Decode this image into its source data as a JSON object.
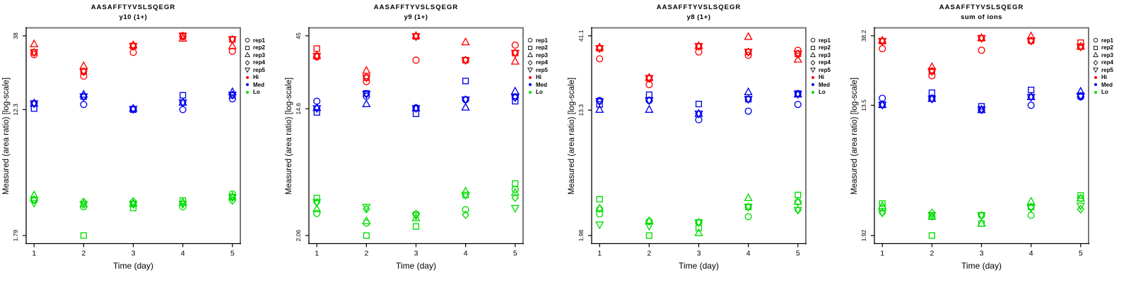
{
  "figure": {
    "xlabel": "Time (day)",
    "ylabel": "Measured (area ratio) [log-scale]",
    "colors": {
      "hi": "#FF0000",
      "med": "#0000EE",
      "lo": "#00DD00",
      "box_gray": "#787878",
      "axis_black": "#000000"
    }
  },
  "legend": {
    "rep_items": [
      {
        "label": "rep1",
        "marker": "circle"
      },
      {
        "label": "rep2",
        "marker": "square"
      },
      {
        "label": "rep3",
        "marker": "triangle-up"
      },
      {
        "label": "rep4",
        "marker": "diamond"
      },
      {
        "label": "rep5",
        "marker": "triangle-down"
      }
    ],
    "level_items": [
      {
        "label": "Hi",
        "color": "#FF0000"
      },
      {
        "label": "Med",
        "color": "#0000EE"
      },
      {
        "label": "Lo",
        "color": "#00DD00"
      }
    ]
  },
  "chart_data": [
    {
      "type": "scatter",
      "title": "AASAFFTYVSLSQEGR",
      "subtitle": "y10 (1+)",
      "xlabel": "Time (day)",
      "ylabel": "Measured (area ratio) [log-scale]",
      "y_scale": "log",
      "x": [
        1,
        2,
        3,
        4,
        5
      ],
      "x_tick_labels": [
        "1",
        "2",
        "3",
        "4",
        "5"
      ],
      "y_ticks": [
        38,
        12.3,
        1.79
      ],
      "y_tick_labels": [
        "38",
        "12.3",
        "1.79"
      ],
      "series": [
        {
          "name": "Hi",
          "color": "#FF0000",
          "reps": [
            {
              "rep": "rep1",
              "marker": "circle",
              "values": [
                28.5,
                20.5,
                29.5,
                37.5,
                30.0
              ]
            },
            {
              "rep": "rep2",
              "marker": "square",
              "values": [
                29.5,
                22.0,
                32.5,
                38.0,
                36.0
              ]
            },
            {
              "rep": "rep3",
              "marker": "triangle-up",
              "values": [
                33.5,
                24.0,
                33.0,
                36.5,
                32.5
              ]
            },
            {
              "rep": "rep4",
              "marker": "diamond",
              "values": [
                29.5,
                22.0,
                32.5,
                38.0,
                36.0
              ]
            },
            {
              "rep": "rep5",
              "marker": "triangle-down",
              "values": [
                29.5,
                22.0,
                32.5,
                38.0,
                36.0
              ]
            }
          ]
        },
        {
          "name": "Med",
          "color": "#0000EE",
          "reps": [
            {
              "rep": "rep1",
              "marker": "circle",
              "values": [
                13.5,
                13.3,
                12.4,
                12.3,
                14.5
              ]
            },
            {
              "rep": "rep2",
              "marker": "square",
              "values": [
                12.5,
                15.0,
                12.3,
                15.3,
                15.3
              ]
            },
            {
              "rep": "rep3",
              "marker": "triangle-up",
              "values": [
                13.5,
                15.5,
                12.5,
                13.7,
                16.1
              ]
            },
            {
              "rep": "rep4",
              "marker": "diamond",
              "values": [
                13.6,
                15.0,
                12.4,
                13.7,
                15.4
              ]
            },
            {
              "rep": "rep5",
              "marker": "triangle-down",
              "values": [
                13.5,
                15.0,
                12.4,
                13.7,
                15.4
              ]
            }
          ]
        },
        {
          "name": "Lo",
          "color": "#00DD00",
          "reps": [
            {
              "rep": "rep1",
              "marker": "circle",
              "values": [
                3.08,
                2.78,
                2.9,
                2.78,
                3.38
              ]
            },
            {
              "rep": "rep2",
              "marker": "square",
              "values": [
                3.1,
                1.79,
                2.73,
                3.06,
                3.22
              ]
            },
            {
              "rep": "rep3",
              "marker": "triangle-up",
              "values": [
                3.32,
                2.9,
                2.92,
                2.97,
                3.26
              ]
            },
            {
              "rep": "rep4",
              "marker": "diamond",
              "values": [
                3.1,
                3.0,
                3.02,
                2.95,
                3.06
              ]
            },
            {
              "rep": "rep5",
              "marker": "triangle-down",
              "values": [
                2.95,
                2.88,
                2.9,
                2.9,
                3.2
              ]
            }
          ]
        }
      ]
    },
    {
      "type": "scatter",
      "title": "AASAFFTYVSLSQEGR",
      "subtitle": "y9 (1+)",
      "xlabel": "Time (day)",
      "ylabel": "Measured (area ratio) [log-scale]",
      "y_scale": "log",
      "x": [
        1,
        2,
        3,
        4,
        5
      ],
      "x_tick_labels": [
        "1",
        "2",
        "3",
        "4",
        "5"
      ],
      "y_ticks": [
        45,
        14.6,
        2.06
      ],
      "y_tick_labels": [
        "45",
        "14.6",
        "2.06"
      ],
      "series": [
        {
          "name": "Hi",
          "color": "#FF0000",
          "reps": [
            {
              "rep": "rep1",
              "marker": "circle",
              "values": [
                32.5,
                22.2,
                30.9,
                30.9,
                39.0
              ]
            },
            {
              "rep": "rep2",
              "marker": "square",
              "values": [
                37.0,
                23.6,
                44.6,
                30.9,
                34.5
              ]
            },
            {
              "rep": "rep3",
              "marker": "triangle-up",
              "values": [
                33.0,
                26.3,
                45.0,
                40.8,
                30.3
              ]
            },
            {
              "rep": "rep4",
              "marker": "diamond",
              "values": [
                33.0,
                23.6,
                44.6,
                30.9,
                34.5
              ]
            },
            {
              "rep": "rep5",
              "marker": "triangle-down",
              "values": [
                33.0,
                23.6,
                44.6,
                30.9,
                34.5
              ]
            }
          ]
        },
        {
          "name": "Med",
          "color": "#0000EE",
          "reps": [
            {
              "rep": "rep1",
              "marker": "circle",
              "values": [
                16.4,
                17.7,
                14.8,
                16.8,
                17.5
              ]
            },
            {
              "rep": "rep2",
              "marker": "square",
              "values": [
                13.8,
                18.5,
                13.5,
                22.4,
                16.4
              ]
            },
            {
              "rep": "rep3",
              "marker": "triangle-up",
              "values": [
                14.8,
                15.7,
                14.7,
                14.9,
                19.1
              ]
            },
            {
              "rep": "rep4",
              "marker": "diamond",
              "values": [
                14.7,
                18.3,
                14.7,
                16.8,
                17.4
              ]
            },
            {
              "rep": "rep5",
              "marker": "triangle-down",
              "values": [
                14.7,
                18.3,
                14.7,
                16.8,
                17.4
              ]
            }
          ]
        },
        {
          "name": "Lo",
          "color": "#00DD00",
          "reps": [
            {
              "rep": "rep1",
              "marker": "circle",
              "values": [
                2.9,
                2.5,
                2.87,
                3.07,
                4.2
              ]
            },
            {
              "rep": "rep2",
              "marker": "square",
              "values": [
                3.67,
                2.06,
                2.37,
                3.85,
                4.6
              ]
            },
            {
              "rep": "rep3",
              "marker": "triangle-up",
              "values": [
                3.1,
                2.58,
                2.7,
                4.08,
                4.0
              ]
            },
            {
              "rep": "rep4",
              "marker": "diamond",
              "values": [
                3.44,
                3.1,
                2.87,
                2.84,
                3.7
              ]
            },
            {
              "rep": "rep5",
              "marker": "triangle-down",
              "values": [
                3.44,
                3.2,
                2.8,
                3.85,
                3.15
              ]
            }
          ]
        }
      ]
    },
    {
      "type": "scatter",
      "title": "AASAFFTYVSLSQEGR",
      "subtitle": "y8 (1+)",
      "xlabel": "Time (day)",
      "ylabel": "Measured (area ratio) [log-scale]",
      "y_scale": "log",
      "x": [
        1,
        2,
        3,
        4,
        5
      ],
      "x_tick_labels": [
        "1",
        "2",
        "3",
        "4",
        "5"
      ],
      "y_ticks": [
        41.1,
        13.3,
        1.98
      ],
      "y_tick_labels": [
        "41.1",
        "13.3",
        "1.98"
      ],
      "series": [
        {
          "name": "Hi",
          "color": "#FF0000",
          "reps": [
            {
              "rep": "rep1",
              "marker": "circle",
              "values": [
                29.0,
                19.6,
                32.2,
                30.6,
                33.0
              ]
            },
            {
              "rep": "rep2",
              "marker": "square",
              "values": [
                34.0,
                21.6,
                35.1,
                32.2,
                31.3
              ]
            },
            {
              "rep": "rep3",
              "marker": "triangle-up",
              "values": [
                34.5,
                21.8,
                35.3,
                40.5,
                28.7
              ]
            },
            {
              "rep": "rep4",
              "marker": "diamond",
              "values": [
                34.0,
                21.6,
                35.1,
                32.2,
                31.3
              ]
            },
            {
              "rep": "rep5",
              "marker": "triangle-down",
              "values": [
                34.0,
                21.6,
                35.1,
                32.2,
                31.3
              ]
            }
          ]
        },
        {
          "name": "Med",
          "color": "#0000EE",
          "reps": [
            {
              "rep": "rep1",
              "marker": "circle",
              "values": [
                15.4,
                15.4,
                11.5,
                13.1,
                14.5
              ]
            },
            {
              "rep": "rep2",
              "marker": "square",
              "values": [
                14.5,
                16.8,
                14.6,
                15.7,
                17.1
              ]
            },
            {
              "rep": "rep3",
              "marker": "triangle-up",
              "values": [
                13.4,
                13.4,
                12.6,
                17.5,
                16.9
              ]
            },
            {
              "rep": "rep4",
              "marker": "diamond",
              "values": [
                15.2,
                15.4,
                12.6,
                15.7,
                17.0
              ]
            },
            {
              "rep": "rep5",
              "marker": "triangle-down",
              "values": [
                15.2,
                15.4,
                12.6,
                15.7,
                17.0
              ]
            }
          ]
        },
        {
          "name": "Lo",
          "color": "#00DD00",
          "reps": [
            {
              "rep": "rep1",
              "marker": "circle",
              "values": [
                2.75,
                2.45,
                2.42,
                2.64,
                3.3
              ]
            },
            {
              "rep": "rep2",
              "marker": "square",
              "values": [
                3.44,
                1.98,
                2.22,
                3.06,
                3.67
              ]
            },
            {
              "rep": "rep3",
              "marker": "triangle-up",
              "values": [
                2.99,
                2.47,
                2.06,
                3.51,
                3.32
              ]
            },
            {
              "rep": "rep4",
              "marker": "diamond",
              "values": [
                2.99,
                2.47,
                2.42,
                3.06,
                2.92
              ]
            },
            {
              "rep": "rep5",
              "marker": "triangle-down",
              "values": [
                2.34,
                2.29,
                2.42,
                3.06,
                2.92
              ]
            }
          ]
        }
      ]
    },
    {
      "type": "scatter",
      "title": "AASAFFTYVSLSQEGR",
      "subtitle": "sum of ions",
      "xlabel": "Time (day)",
      "ylabel": "Measured (area ratio) [log-scale]",
      "y_scale": "log",
      "x": [
        1,
        2,
        3,
        4,
        5
      ],
      "x_tick_labels": [
        "1",
        "2",
        "3",
        "4",
        "5"
      ],
      "y_ticks": [
        38.2,
        13.5,
        1.92
      ],
      "y_tick_labels": [
        "38.2",
        "13.5",
        "1.92"
      ],
      "series": [
        {
          "name": "Hi",
          "color": "#FF0000",
          "reps": [
            {
              "rep": "rep1",
              "marker": "circle",
              "values": [
                31.5,
                21.0,
                30.8,
                35.5,
                32.5
              ]
            },
            {
              "rep": "rep2",
              "marker": "square",
              "values": [
                35.3,
                22.5,
                36.9,
                35.5,
                34.5
              ]
            },
            {
              "rep": "rep3",
              "marker": "triangle-up",
              "values": [
                35.6,
                24.0,
                37.0,
                38.0,
                32.5
              ]
            },
            {
              "rep": "rep4",
              "marker": "diamond",
              "values": [
                35.3,
                22.5,
                36.9,
                35.5,
                32.5
              ]
            },
            {
              "rep": "rep5",
              "marker": "triangle-down",
              "values": [
                35.3,
                22.5,
                36.9,
                35.5,
                32.5
              ]
            }
          ]
        },
        {
          "name": "Med",
          "color": "#0000EE",
          "reps": [
            {
              "rep": "rep1",
              "marker": "circle",
              "values": [
                15.0,
                14.9,
                12.6,
                13.5,
                15.3
              ]
            },
            {
              "rep": "rep2",
              "marker": "square",
              "values": [
                13.6,
                16.3,
                13.3,
                17.0,
                15.6
              ]
            },
            {
              "rep": "rep3",
              "marker": "triangle-up",
              "values": [
                13.6,
                14.9,
                12.6,
                15.3,
                16.6
              ]
            },
            {
              "rep": "rep4",
              "marker": "diamond",
              "values": [
                13.6,
                14.9,
                12.7,
                15.3,
                15.5
              ]
            },
            {
              "rep": "rep5",
              "marker": "triangle-down",
              "values": [
                13.6,
                14.9,
                12.7,
                15.3,
                15.5
              ]
            }
          ]
        },
        {
          "name": "Lo",
          "color": "#00DD00",
          "reps": [
            {
              "rep": "rep1",
              "marker": "circle",
              "values": [
                2.9,
                2.55,
                2.6,
                2.6,
                3.35
              ]
            },
            {
              "rep": "rep2",
              "marker": "square",
              "values": [
                3.1,
                1.92,
                2.3,
                2.95,
                3.5
              ]
            },
            {
              "rep": "rep3",
              "marker": "triangle-up",
              "values": [
                3.0,
                2.55,
                2.3,
                3.2,
                3.35
              ]
            },
            {
              "rep": "rep4",
              "marker": "diamond",
              "values": [
                2.7,
                2.7,
                2.6,
                2.95,
                2.85
              ]
            },
            {
              "rep": "rep5",
              "marker": "triangle-down",
              "values": [
                2.7,
                2.6,
                2.6,
                2.9,
                3.0
              ]
            }
          ]
        }
      ]
    }
  ]
}
